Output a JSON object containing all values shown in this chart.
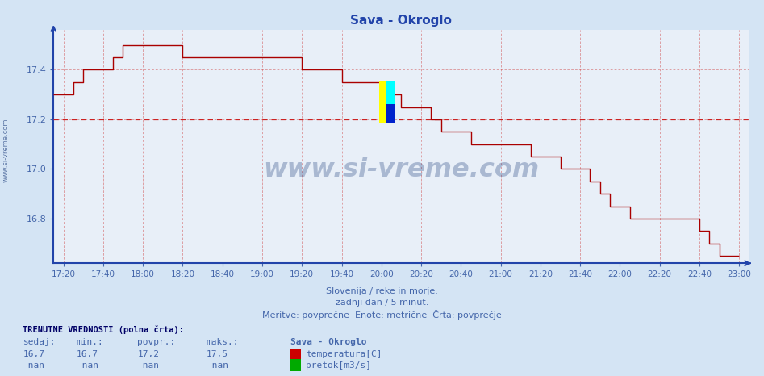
{
  "title": "Sava - Okroglo",
  "title_color": "#2244aa",
  "bg_color": "#d4e4f4",
  "plot_bg_color": "#e8eff8",
  "line_color": "#aa0000",
  "avg_line_color": "#cc2222",
  "avg_value": 17.2,
  "xlabel_lines": [
    "Slovenija / reke in morje.",
    "zadnji dan / 5 minut.",
    "Meritve: povprečne  Enote: metrične  Črta: povprečje"
  ],
  "xlabel_color": "#4466aa",
  "axis_color": "#2244aa",
  "grid_color": "#cc3333",
  "tick_color": "#4466aa",
  "watermark_text": "www.si-vreme.com",
  "watermark_color": "#1a3a7a",
  "watermark_alpha": 0.3,
  "side_text": "www.si-vreme.com",
  "yticks": [
    16.8,
    17.0,
    17.2,
    17.4
  ],
  "ymin": 16.62,
  "ymax": 17.56,
  "x_start_h": 17.25,
  "x_end_h": 23.08,
  "xtick_hours": [
    17.333,
    17.667,
    18.0,
    18.333,
    18.667,
    19.0,
    19.333,
    19.667,
    20.0,
    20.333,
    20.667,
    21.0,
    21.333,
    21.667,
    22.0,
    22.333,
    22.667,
    23.0
  ],
  "xtick_labels": [
    "17:20",
    "17:40",
    "18:00",
    "18:20",
    "18:40",
    "19:00",
    "19:20",
    "19:40",
    "20:00",
    "20:20",
    "20:40",
    "21:00",
    "21:20",
    "21:40",
    "22:00",
    "22:20",
    "22:40",
    "23:00"
  ],
  "temp_x": [
    17.25,
    17.333,
    17.367,
    17.417,
    17.5,
    17.583,
    17.667,
    17.75,
    17.833,
    18.0,
    18.083,
    18.167,
    18.25,
    18.333,
    18.5,
    18.667,
    18.75,
    19.0,
    19.167,
    19.333,
    19.4,
    19.417,
    19.5,
    19.583,
    19.667,
    19.75,
    19.833,
    20.0,
    20.083,
    20.167,
    20.25,
    20.333,
    20.417,
    20.5,
    20.583,
    20.667,
    20.75,
    20.833,
    20.917,
    21.0,
    21.083,
    21.167,
    21.25,
    21.333,
    21.417,
    21.5,
    21.583,
    21.667,
    21.75,
    21.833,
    21.917,
    22.0,
    22.083,
    22.167,
    22.25,
    22.333,
    22.417,
    22.5,
    22.583,
    22.667,
    22.75,
    22.833,
    22.917,
    23.0
  ],
  "temp_y": [
    17.3,
    17.3,
    17.3,
    17.35,
    17.4,
    17.4,
    17.4,
    17.45,
    17.5,
    17.5,
    17.5,
    17.5,
    17.5,
    17.45,
    17.45,
    17.45,
    17.45,
    17.45,
    17.45,
    17.4,
    17.4,
    17.4,
    17.4,
    17.4,
    17.35,
    17.35,
    17.35,
    17.3,
    17.3,
    17.25,
    17.25,
    17.25,
    17.2,
    17.15,
    17.15,
    17.15,
    17.1,
    17.1,
    17.1,
    17.1,
    17.1,
    17.1,
    17.05,
    17.05,
    17.05,
    17.0,
    17.0,
    17.0,
    16.95,
    16.9,
    16.85,
    16.85,
    16.8,
    16.8,
    16.8,
    16.8,
    16.8,
    16.8,
    16.8,
    16.75,
    16.7,
    16.65,
    16.65,
    16.65
  ],
  "bottom_header": "TRENUTNE VREDNOSTI (polna črta):",
  "bottom_cols": [
    "sedaj:",
    "min.:",
    "povpr.:",
    "maks.:"
  ],
  "bottom_vals_temp": [
    "16,7",
    "16,7",
    "17,2",
    "17,5"
  ],
  "bottom_vals_flow": [
    "-nan",
    "-nan",
    "-nan",
    "-nan"
  ],
  "bottom_station": "Sava - Okroglo",
  "bottom_label_temp": "temperatura[C]",
  "bottom_label_flow": "pretok[m3/s]",
  "temp_color": "#cc0000",
  "flow_color": "#00aa00",
  "bottom_text_color": "#4466aa",
  "bottom_header_color": "#000066"
}
